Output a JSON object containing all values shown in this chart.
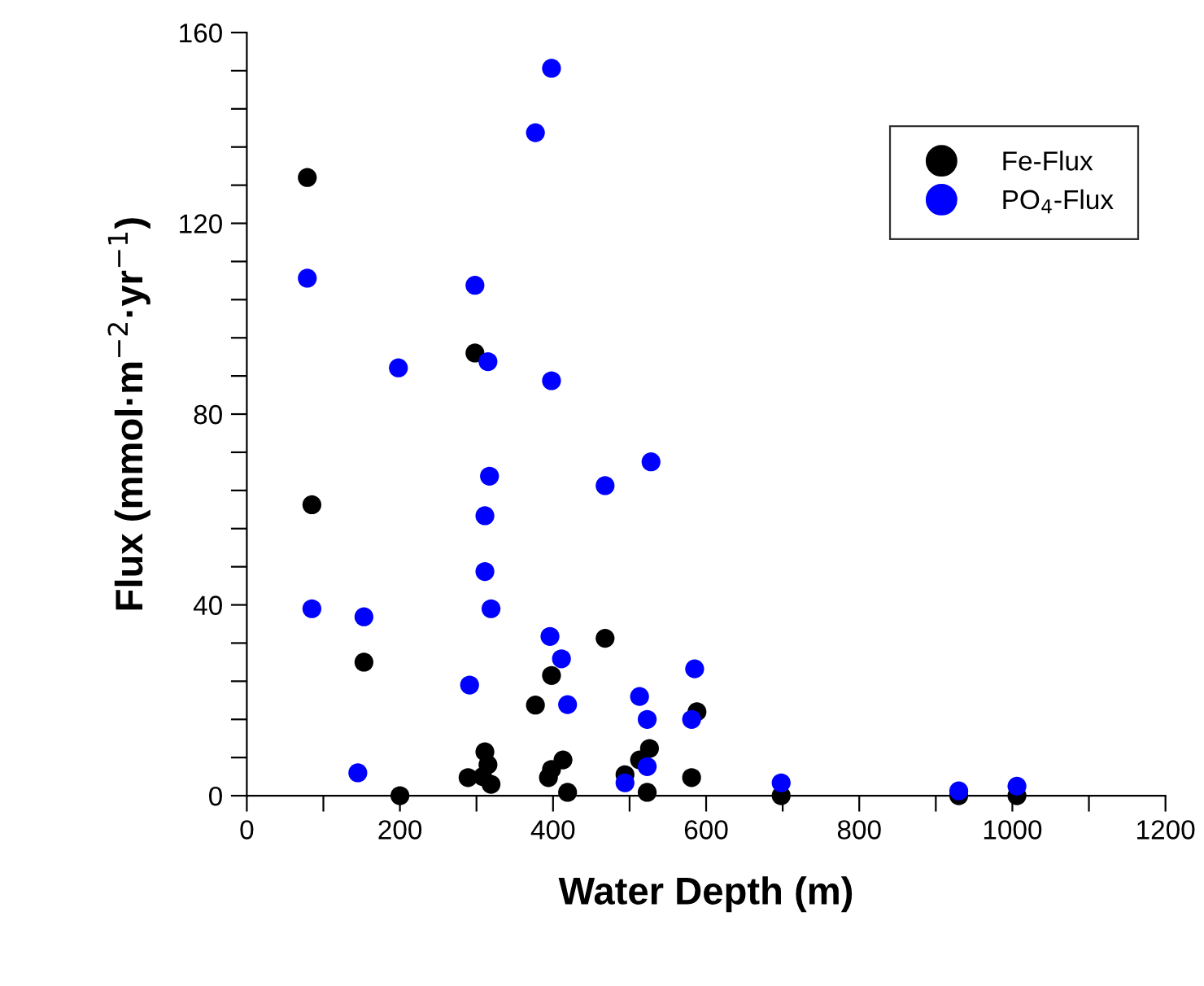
{
  "chart_data": {
    "type": "scatter",
    "xlabel": "Water Depth (m)",
    "ylabel": "Flux (mmol·m$^{−2}$·yr$^{−1}$)",
    "xlim": [
      0,
      1200
    ],
    "ylim": [
      0,
      160
    ],
    "xticks": [
      0,
      {
        "value": 100,
        "label": null
      },
      200,
      {
        "value": 300,
        "label": null
      },
      400,
      {
        "value": 500,
        "label": null
      },
      600,
      {
        "value": 700,
        "label": null
      },
      800,
      {
        "value": 900,
        "label": null
      },
      1000,
      {
        "value": 1100,
        "label": null
      },
      1200
    ],
    "yticks": [
      0,
      {
        "value": 8,
        "label": null
      },
      {
        "value": 16,
        "label": null
      },
      {
        "value": 24,
        "label": null
      },
      {
        "value": 32,
        "label": null
      },
      40,
      {
        "value": 48,
        "label": null
      },
      {
        "value": 56,
        "label": null
      },
      {
        "value": 64,
        "label": null
      },
      {
        "value": 72,
        "label": null
      },
      80,
      {
        "value": 88,
        "label": null
      },
      {
        "value": 96,
        "label": null
      },
      {
        "value": 104,
        "label": null
      },
      {
        "value": 112,
        "label": null
      },
      120,
      {
        "value": 128,
        "label": null
      },
      {
        "value": 136,
        "label": null
      },
      {
        "value": 144,
        "label": null
      },
      {
        "value": 152,
        "label": null
      },
      160
    ],
    "grid": false,
    "legend": "top right",
    "marker": "circle",
    "series": [
      {
        "name": "Fe-Flux",
        "color": "#000000",
        "x": [
          79,
          85,
          153,
          200,
          298,
          468,
          398,
          377,
          588,
          311,
          315,
          289,
          319,
          308,
          413,
          398,
          394,
          419,
          526,
          513,
          494,
          523,
          581,
          698,
          930,
          1006
        ],
        "values": [
          129.6,
          61,
          28,
          0,
          92.8,
          33,
          25.2,
          19,
          17.6,
          9.2,
          6.5,
          3.8,
          2.4,
          4,
          7.5,
          5.5,
          3.8,
          0.7,
          9.9,
          7.5,
          4.4,
          0.7,
          3.8,
          0,
          0,
          0
        ]
      },
      {
        "name": "PO$_{4}$-Flux",
        "color": "#0000ff",
        "x": [
          398,
          377,
          79,
          298,
          198,
          315,
          398,
          528,
          468,
          317,
          311,
          311,
          319,
          396,
          411,
          291,
          419,
          585,
          513,
          523,
          581,
          523,
          494,
          698,
          85,
          153,
          145,
          930,
          1006
        ],
        "values": [
          152.5,
          139,
          108.5,
          107,
          89.7,
          91,
          87,
          70,
          65,
          67,
          58.7,
          47,
          39.2,
          33.4,
          28.7,
          23.2,
          19.1,
          26.6,
          20.8,
          16,
          16,
          6.1,
          2.7,
          2.7,
          39.2,
          37.5,
          4.8,
          1,
          2
        ]
      }
    ]
  }
}
